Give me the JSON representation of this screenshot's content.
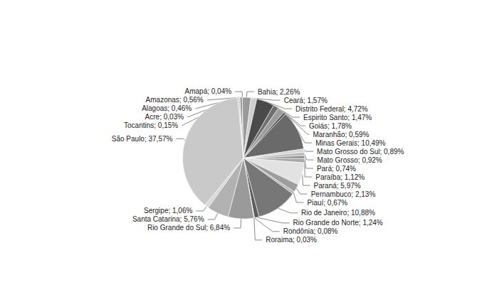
{
  "chart_data": {
    "type": "pie",
    "categories": [
      "Acre",
      "Alagoas",
      "Amazonas",
      "Amapá",
      "Bahia",
      "Ceará",
      "Distrito Federal",
      "Espirito Santo",
      "Goiás",
      "Maranhão",
      "Minas Gerais",
      "Mato Grosso do Sul",
      "Mato Grosso",
      "Pará",
      "Paraíba",
      "Paraná",
      "Pernambuco",
      "Piauí",
      "Rio de Janeiro",
      "Rio Grande do Norte",
      "Rondônia",
      "Roraima",
      "Rio Grande do Sul",
      "Santa Catarina",
      "Sergipe",
      "São Paulo",
      "Tocantins"
    ],
    "values": [
      0.03,
      0.46,
      0.56,
      0.04,
      2.26,
      1.57,
      4.72,
      1.47,
      1.78,
      0.59,
      10.49,
      0.89,
      0.92,
      0.74,
      1.12,
      5.97,
      2.13,
      0.67,
      10.88,
      1.24,
      0.08,
      0.03,
      6.84,
      5.76,
      1.06,
      37.57,
      0.15
    ],
    "value_labels": [
      "Acre; 0,03%",
      "Alagoas; 0,46%",
      "Amazonas; 0,56%",
      "Amapá; 0,04%",
      "Bahia; 2,26%",
      "Ceará; 1,57%",
      "Distrito Federal; 4,72%",
      "Espirito Santo; 1,47%",
      "Goiás; 1,78%",
      "Maranhão; 0,59%",
      "Minas Gerais; 10,49%",
      "Mato Grosso do Sul; 0,89%",
      "Mato Grosso; 0,92%",
      "Pará; 0,74%",
      "Paraíba; 1,12%",
      "Paraná; 5,97%",
      "Pernambuco; 2,13%",
      "Piauí; 0,67%",
      "Rio de Janeiro; 10,88%",
      "Rio Grande do Norte; 1,24%",
      "Rondônia; 0,08%",
      "Roraima; 0,03%",
      "Rio Grande do Sul; 6,84%",
      "Santa Catarina; 5,76%",
      "Sergipe; 1,06%",
      "São Paulo; 37,57%",
      "Tocantins; 0,15%"
    ],
    "colors": [
      "#555555",
      "#d0d0d0",
      "#8a8a8a",
      "#bdbdbd",
      "#9a9a9a",
      "#cfcfcf",
      "#4a4a4a",
      "#6e6e6e",
      "#9c9c9c",
      "#505050",
      "#6a6a6a",
      "#d5d5d5",
      "#bcbcbc",
      "#8c8c8c",
      "#a8a8a8",
      "#e2e2e2",
      "#9e9e9e",
      "#b5b5b5",
      "#777777",
      "#5c5c5c",
      "#8e8e8e",
      "#c4c4c4",
      "#9a9a9a",
      "#b2b2b2",
      "#d8d8d8",
      "#c9c9c9",
      "#7c7c7c"
    ],
    "data_labels": true
  }
}
